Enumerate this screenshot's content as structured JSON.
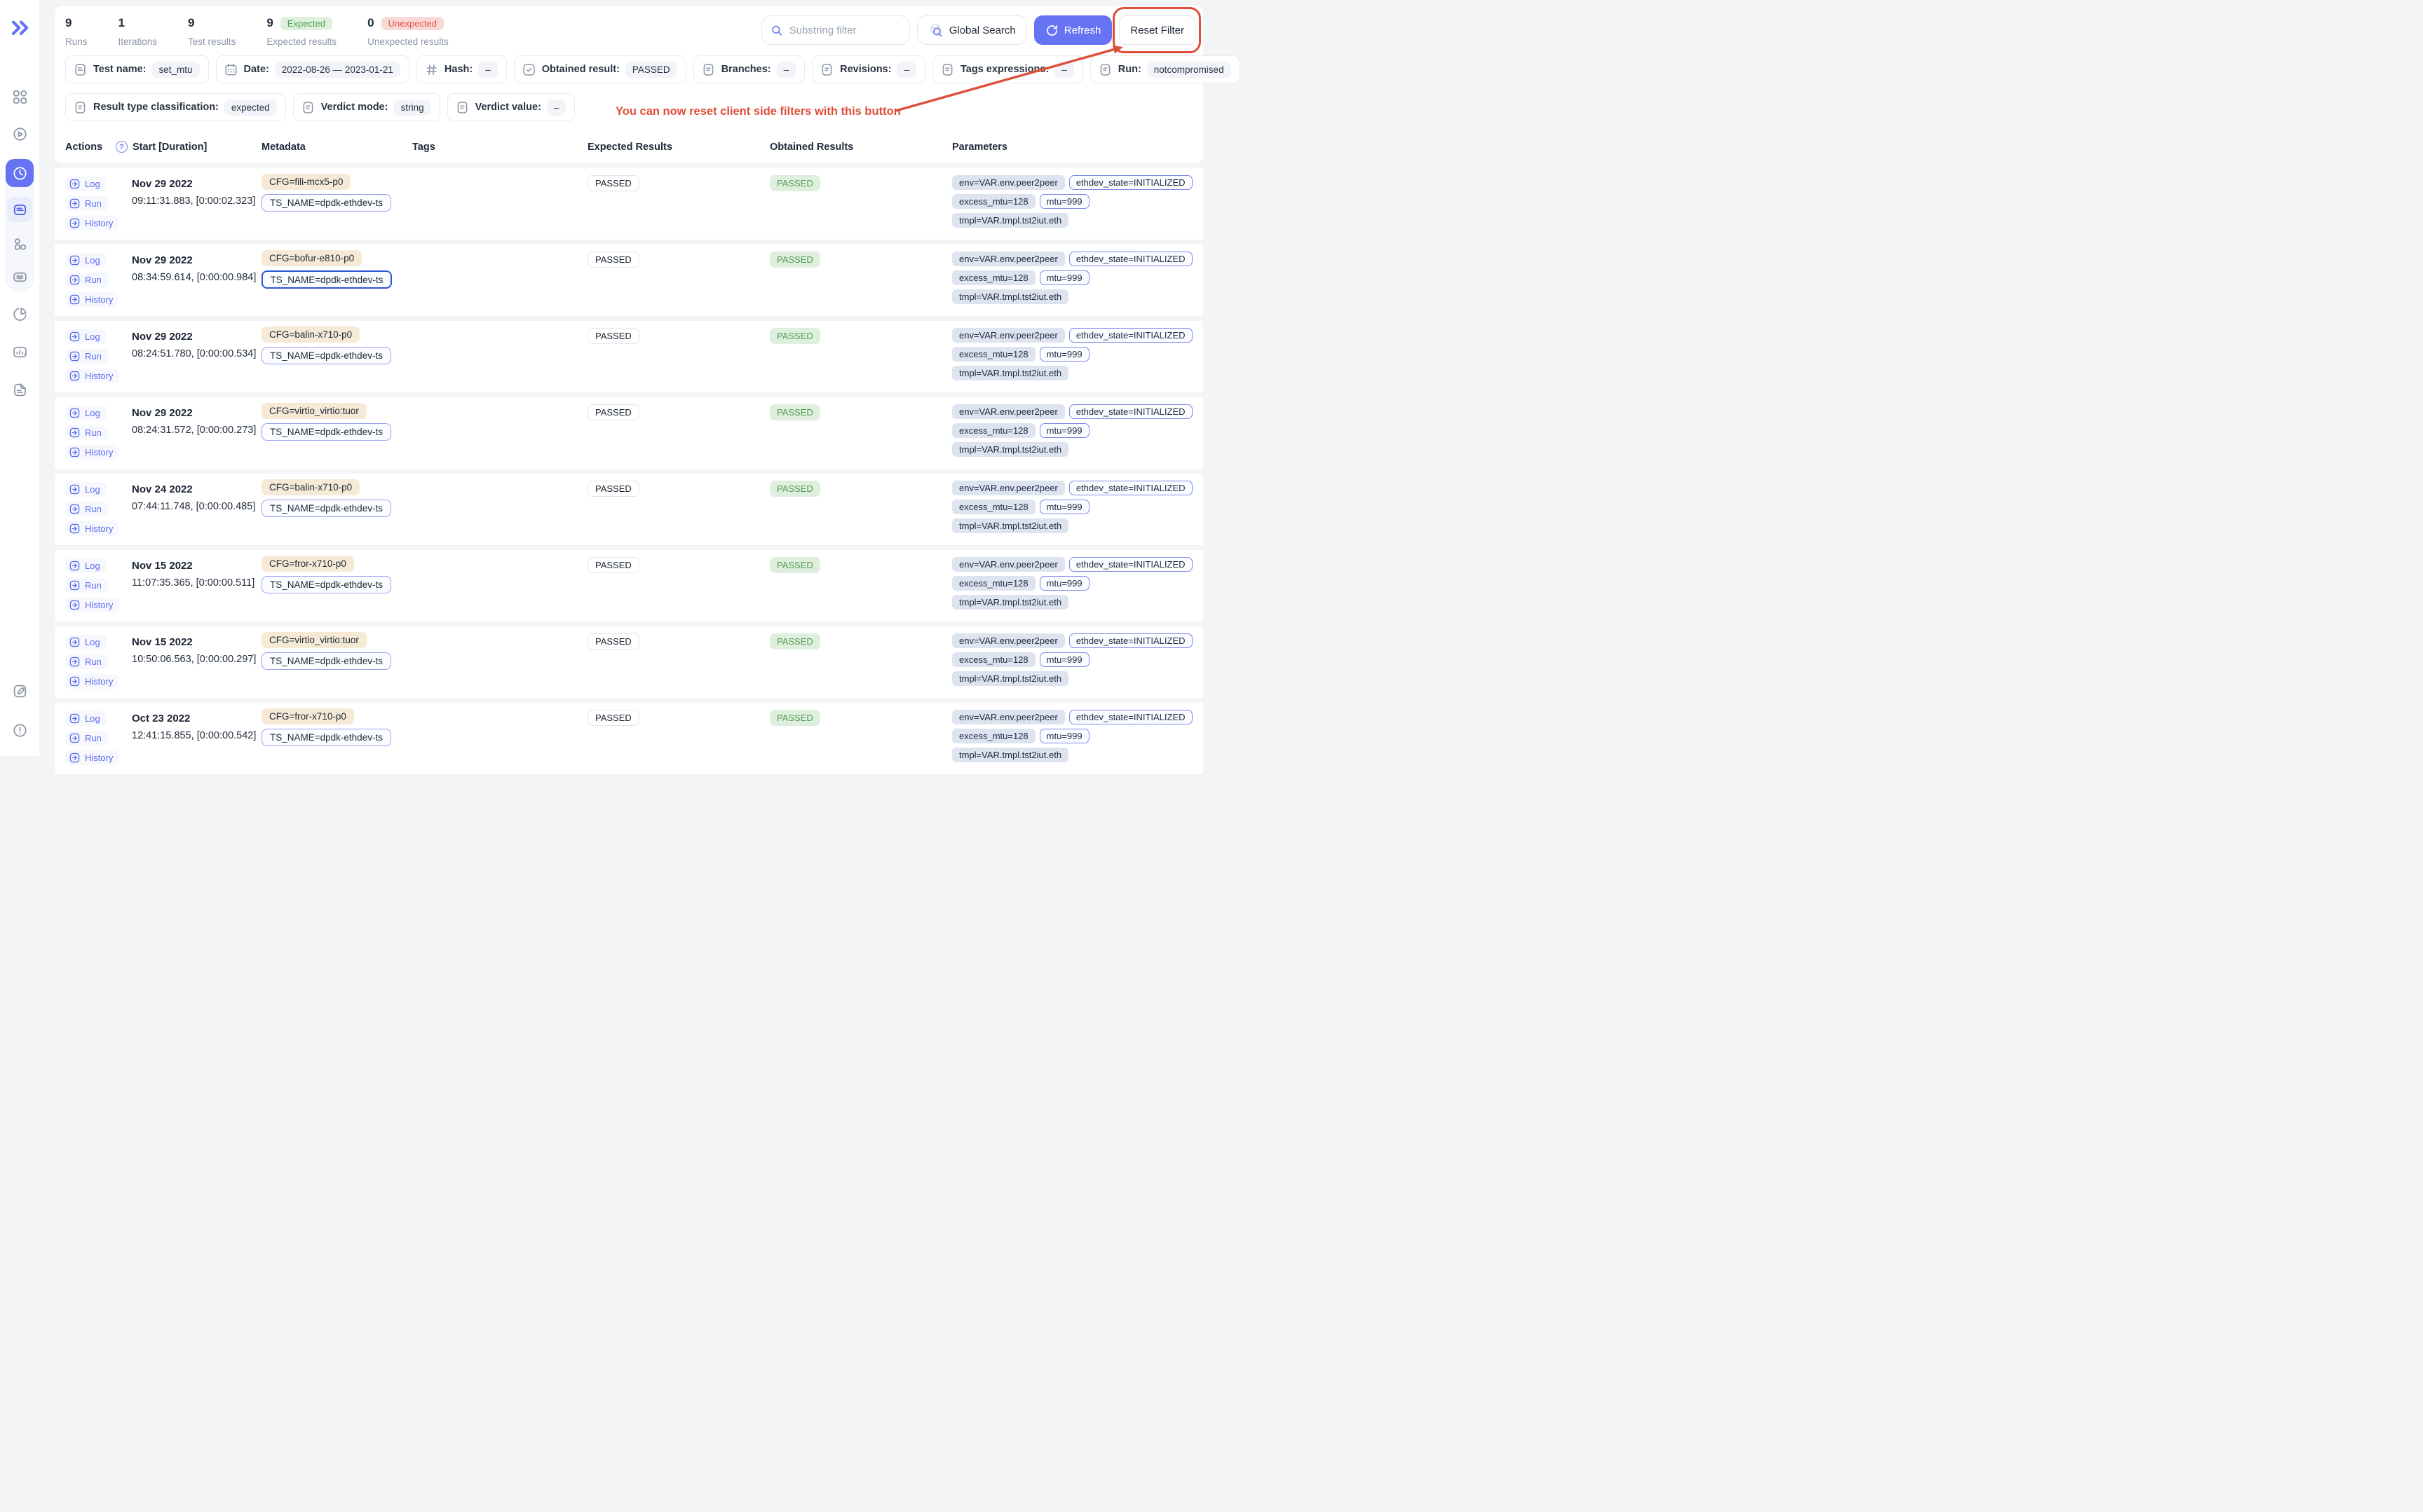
{
  "colors": {
    "accent": "#6673f2",
    "annotation_red": "#de4f3a",
    "success_bg": "#ddf1dc",
    "success_text": "#55a157",
    "danger_bg": "#f8d9d6",
    "danger_text": "#e25549",
    "param_badge_bg": "#dde4f0",
    "cfg_badge_bg": "#f6ead7",
    "ts_badge_border": "#98a0f0",
    "ts_badge_focused_border": "#2c55d8"
  },
  "sidebar": {
    "logo_icon": "double-chevron-right-logo",
    "items": [
      {
        "icon": "grid-icon",
        "active": false
      },
      {
        "icon": "play-circle-icon",
        "active": false
      },
      {
        "icon": "clock-history-icon",
        "active": true
      },
      {
        "icon": "document-lines-icon",
        "active": false,
        "sub_active": true
      },
      {
        "icon": "shapes-icon",
        "active": false
      },
      {
        "icon": "waves-icon",
        "active": false
      },
      {
        "icon": "pie-chart-icon",
        "active": false
      },
      {
        "icon": "bar-chart-icon",
        "active": false
      },
      {
        "icon": "document-corner-icon",
        "active": false
      },
      {
        "icon": "edit-icon",
        "active": false
      },
      {
        "icon": "info-circle-icon",
        "active": false
      }
    ]
  },
  "stats": [
    {
      "value": "9",
      "label": "Runs"
    },
    {
      "value": "1",
      "label": "Iterations"
    },
    {
      "value": "9",
      "label": "Test results"
    },
    {
      "value": "9",
      "label": "Expected results",
      "badge": "Expected",
      "badge_type": "success"
    },
    {
      "value": "0",
      "label": "Unexpected results",
      "badge": "Unexpected",
      "badge_type": "danger"
    }
  ],
  "controls": {
    "search_placeholder": "Substring filter",
    "search_value": "",
    "global_search_label": "Global Search",
    "refresh_label": "Refresh",
    "reset_filter_label": "Reset Filter"
  },
  "annotation": {
    "text": "You can now reset client side filters with this button"
  },
  "filters_row1": [
    {
      "icon": "document-icon",
      "label": "Test name:",
      "value": "set_mtu"
    },
    {
      "icon": "calendar-icon",
      "label": "Date:",
      "value": "2022-08-26 — 2023-01-21"
    },
    {
      "icon": "hash-icon",
      "label": "Hash:",
      "value": "–"
    },
    {
      "icon": "check-square-icon",
      "label": "Obtained result:",
      "value": "PASSED"
    },
    {
      "icon": "log-book-icon",
      "label": "Branches:",
      "value": "–"
    },
    {
      "icon": "log-book-icon",
      "label": "Revisions:",
      "value": "–"
    },
    {
      "icon": "log-book-icon",
      "label": "Tags expressions:",
      "value": "–"
    },
    {
      "icon": "log-book-icon",
      "label": "Run:",
      "value": "notcompromised"
    }
  ],
  "filters_row2": [
    {
      "icon": "log-book-icon",
      "label": "Result type classification:",
      "value": "expected"
    },
    {
      "icon": "log-book-icon",
      "label": "Verdict mode:",
      "value": "string"
    },
    {
      "icon": "log-book-icon",
      "label": "Verdict value:",
      "value": "–"
    }
  ],
  "table": {
    "headers": [
      "Actions",
      "Start [Duration]",
      "Metadata",
      "Tags",
      "Expected Results",
      "Obtained Results",
      "Parameters"
    ],
    "start_header_help_icon": "question-circle-icon"
  },
  "row_actions": [
    "Log",
    "Run",
    "History"
  ],
  "rows": [
    {
      "date": "Nov 29 2022",
      "time": "09:11:31.883, [0:00:02.323]",
      "metadata": {
        "cfg": "CFG=fili-mcx5-p0",
        "ts_name": "TS_NAME=dpdk-ethdev-ts",
        "ts_focused": false
      },
      "tags": "",
      "expected": "PASSED",
      "obtained": "PASSED",
      "params": [
        {
          "text": "env=VAR.env.peer2peer",
          "bordered": false
        },
        {
          "text": "ethdev_state=INITIALIZED",
          "bordered": true
        },
        {
          "text": "excess_mtu=128",
          "bordered": false
        },
        {
          "text": "mtu=999",
          "bordered": true
        },
        {
          "text": "tmpl=VAR.tmpl.tst2iut.eth",
          "bordered": false
        }
      ]
    },
    {
      "date": "Nov 29 2022",
      "time": "08:34:59.614, [0:00:00.984]",
      "metadata": {
        "cfg": "CFG=bofur-e810-p0",
        "ts_name": "TS_NAME=dpdk-ethdev-ts",
        "ts_focused": true
      },
      "tags": "",
      "expected": "PASSED",
      "obtained": "PASSED",
      "params": [
        {
          "text": "env=VAR.env.peer2peer",
          "bordered": false
        },
        {
          "text": "ethdev_state=INITIALIZED",
          "bordered": true
        },
        {
          "text": "excess_mtu=128",
          "bordered": false
        },
        {
          "text": "mtu=999",
          "bordered": true
        },
        {
          "text": "tmpl=VAR.tmpl.tst2iut.eth",
          "bordered": false
        }
      ]
    },
    {
      "date": "Nov 29 2022",
      "time": "08:24:51.780, [0:00:00.534]",
      "metadata": {
        "cfg": "CFG=balin-x710-p0",
        "ts_name": "TS_NAME=dpdk-ethdev-ts",
        "ts_focused": false
      },
      "tags": "",
      "expected": "PASSED",
      "obtained": "PASSED",
      "params": [
        {
          "text": "env=VAR.env.peer2peer",
          "bordered": false
        },
        {
          "text": "ethdev_state=INITIALIZED",
          "bordered": true
        },
        {
          "text": "excess_mtu=128",
          "bordered": false
        },
        {
          "text": "mtu=999",
          "bordered": true
        },
        {
          "text": "tmpl=VAR.tmpl.tst2iut.eth",
          "bordered": false
        }
      ]
    },
    {
      "date": "Nov 29 2022",
      "time": "08:24:31.572, [0:00:00.273]",
      "metadata": {
        "cfg": "CFG=virtio_virtio:tuor",
        "ts_name": "TS_NAME=dpdk-ethdev-ts",
        "ts_focused": false
      },
      "tags": "",
      "expected": "PASSED",
      "obtained": "PASSED",
      "params": [
        {
          "text": "env=VAR.env.peer2peer",
          "bordered": false
        },
        {
          "text": "ethdev_state=INITIALIZED",
          "bordered": true
        },
        {
          "text": "excess_mtu=128",
          "bordered": false
        },
        {
          "text": "mtu=999",
          "bordered": true
        },
        {
          "text": "tmpl=VAR.tmpl.tst2iut.eth",
          "bordered": false
        }
      ]
    },
    {
      "date": "Nov 24 2022",
      "time": "07:44:11.748, [0:00:00.485]",
      "metadata": {
        "cfg": "CFG=balin-x710-p0",
        "ts_name": "TS_NAME=dpdk-ethdev-ts",
        "ts_focused": false
      },
      "tags": "",
      "expected": "PASSED",
      "obtained": "PASSED",
      "params": [
        {
          "text": "env=VAR.env.peer2peer",
          "bordered": false
        },
        {
          "text": "ethdev_state=INITIALIZED",
          "bordered": true
        },
        {
          "text": "excess_mtu=128",
          "bordered": false
        },
        {
          "text": "mtu=999",
          "bordered": true
        },
        {
          "text": "tmpl=VAR.tmpl.tst2iut.eth",
          "bordered": false
        }
      ]
    },
    {
      "date": "Nov 15 2022",
      "time": "11:07:35.365, [0:00:00.511]",
      "metadata": {
        "cfg": "CFG=fror-x710-p0",
        "ts_name": "TS_NAME=dpdk-ethdev-ts",
        "ts_focused": false
      },
      "tags": "",
      "expected": "PASSED",
      "obtained": "PASSED",
      "params": [
        {
          "text": "env=VAR.env.peer2peer",
          "bordered": false
        },
        {
          "text": "ethdev_state=INITIALIZED",
          "bordered": true
        },
        {
          "text": "excess_mtu=128",
          "bordered": false
        },
        {
          "text": "mtu=999",
          "bordered": true
        },
        {
          "text": "tmpl=VAR.tmpl.tst2iut.eth",
          "bordered": false
        }
      ]
    },
    {
      "date": "Nov 15 2022",
      "time": "10:50:06.563, [0:00:00.297]",
      "metadata": {
        "cfg": "CFG=virtio_virtio:tuor",
        "ts_name": "TS_NAME=dpdk-ethdev-ts",
        "ts_focused": false
      },
      "tags": "",
      "expected": "PASSED",
      "obtained": "PASSED",
      "params": [
        {
          "text": "env=VAR.env.peer2peer",
          "bordered": false
        },
        {
          "text": "ethdev_state=INITIALIZED",
          "bordered": true
        },
        {
          "text": "excess_mtu=128",
          "bordered": false
        },
        {
          "text": "mtu=999",
          "bordered": true
        },
        {
          "text": "tmpl=VAR.tmpl.tst2iut.eth",
          "bordered": false
        }
      ]
    },
    {
      "date": "Oct 23 2022",
      "time": "12:41:15.855, [0:00:00.542]",
      "metadata": {
        "cfg": "CFG=fror-x710-p0",
        "ts_name": "TS_NAME=dpdk-ethdev-ts",
        "ts_focused": false
      },
      "tags": "",
      "expected": "PASSED",
      "obtained": "PASSED",
      "params": [
        {
          "text": "env=VAR.env.peer2peer",
          "bordered": false
        },
        {
          "text": "ethdev_state=INITIALIZED",
          "bordered": true
        },
        {
          "text": "excess_mtu=128",
          "bordered": false
        },
        {
          "text": "mtu=999",
          "bordered": true
        },
        {
          "text": "tmpl=VAR.tmpl.tst2iut.eth",
          "bordered": false
        }
      ]
    }
  ]
}
